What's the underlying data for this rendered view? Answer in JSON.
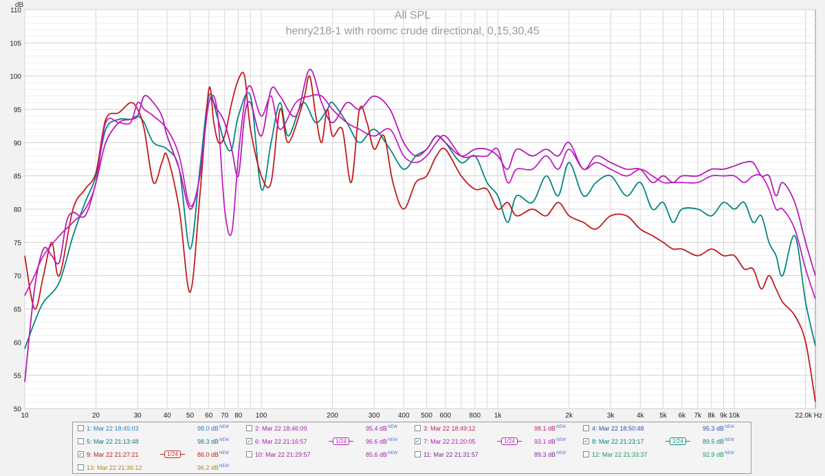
{
  "chart_data": {
    "type": "line",
    "title": "All SPL",
    "subtitle": "henry218-1 with roomc crude directional, 0,15,30,45",
    "y_unit_label": "dB",
    "x_unit_label": "Hz",
    "x_scale": "log",
    "xlim": [
      10,
      22000
    ],
    "ylim": [
      50,
      110
    ],
    "grid": true,
    "y_ticks": [
      50,
      55,
      60,
      65,
      70,
      75,
      80,
      85,
      90,
      95,
      100,
      105,
      110
    ],
    "x_ticks": [
      {
        "v": 10,
        "label": "10"
      },
      {
        "v": 20,
        "label": "20"
      },
      {
        "v": 30,
        "label": "30"
      },
      {
        "v": 40,
        "label": "40"
      },
      {
        "v": 50,
        "label": "50"
      },
      {
        "v": 60,
        "label": "60"
      },
      {
        "v": 70,
        "label": "70"
      },
      {
        "v": 80,
        "label": "80"
      },
      {
        "v": 100,
        "label": "100"
      },
      {
        "v": 200,
        "label": "200"
      },
      {
        "v": 300,
        "label": "300"
      },
      {
        "v": 400,
        "label": "400"
      },
      {
        "v": 500,
        "label": "500"
      },
      {
        "v": 600,
        "label": "600"
      },
      {
        "v": 800,
        "label": "800"
      },
      {
        "v": 1000,
        "label": "1k"
      },
      {
        "v": 2000,
        "label": "2k"
      },
      {
        "v": 3000,
        "label": "3k"
      },
      {
        "v": 4000,
        "label": "4k"
      },
      {
        "v": 5000,
        "label": "5k"
      },
      {
        "v": 6000,
        "label": "6k"
      },
      {
        "v": 7000,
        "label": "7k"
      },
      {
        "v": 8000,
        "label": "8k"
      },
      {
        "v": 9000,
        "label": "9k"
      },
      {
        "v": 10000,
        "label": "10k"
      },
      {
        "v": 22000,
        "label": "22.0k Hz"
      }
    ],
    "series": [
      {
        "color": "#00857f",
        "x": [
          10,
          11,
          12,
          14,
          16,
          18,
          20,
          22,
          25,
          28,
          30,
          32,
          35,
          40,
          45,
          50,
          55,
          60,
          65,
          70,
          75,
          80,
          90,
          100,
          110,
          120,
          130,
          150,
          170,
          190,
          200,
          230,
          260,
          300,
          350,
          400,
          450,
          500,
          550,
          600,
          700,
          800,
          900,
          1000,
          1100,
          1200,
          1400,
          1600,
          1800,
          2000,
          2300,
          2600,
          3000,
          3500,
          4000,
          4500,
          5000,
          5500,
          6000,
          7000,
          8000,
          9000,
          10000,
          11000,
          12000,
          13000,
          14000,
          15000,
          16000,
          18000,
          20000,
          22000
        ],
        "y": [
          59,
          63,
          66,
          69,
          76,
          81,
          85,
          92,
          93.5,
          93.5,
          94,
          93,
          90,
          89,
          86,
          74,
          86,
          97,
          94,
          90,
          89,
          94,
          97,
          83,
          90,
          96,
          91,
          96,
          93,
          95,
          96,
          93,
          90,
          92,
          89,
          86,
          88,
          89,
          91,
          90,
          87,
          88,
          84,
          82,
          78,
          82,
          81,
          85,
          82,
          87,
          82,
          84,
          85,
          82,
          84,
          80,
          81,
          78,
          80,
          80,
          79,
          81,
          80,
          81,
          78,
          79,
          75,
          73,
          70,
          76,
          66,
          59.5
        ]
      },
      {
        "color": "#c11a1a",
        "x": [
          10,
          11,
          12,
          13,
          14,
          16,
          18,
          20,
          22,
          25,
          28,
          30,
          32,
          35,
          38,
          40,
          45,
          50,
          55,
          60,
          63,
          66,
          70,
          75,
          80,
          85,
          90,
          100,
          110,
          120,
          130,
          150,
          160,
          170,
          180,
          190,
          200,
          220,
          240,
          260,
          280,
          300,
          330,
          360,
          400,
          450,
          500,
          550,
          600,
          700,
          800,
          900,
          1000,
          1100,
          1200,
          1400,
          1600,
          1800,
          2000,
          2300,
          2600,
          3000,
          3500,
          4000,
          4500,
          5000,
          5500,
          6000,
          7000,
          8000,
          9000,
          10000,
          11000,
          12000,
          13000,
          14000,
          15000,
          16000,
          18000,
          20000,
          22000
        ],
        "y": [
          73,
          65,
          70,
          75,
          70,
          80,
          83,
          85.5,
          93.5,
          94.5,
          96,
          95,
          92,
          84,
          87,
          88,
          80,
          67.5,
          82,
          98,
          93,
          90,
          91,
          96,
          99.5,
          100,
          92,
          85,
          84,
          95,
          90,
          96,
          100,
          94,
          90,
          95,
          91,
          92,
          84,
          95,
          93,
          89,
          91,
          84,
          80,
          84,
          85,
          88,
          89,
          85,
          83,
          83,
          80,
          81,
          79,
          80,
          79,
          81,
          79,
          78,
          77,
          79,
          79,
          77,
          76,
          75,
          74,
          74,
          73,
          74,
          73,
          73,
          71,
          71,
          68,
          70,
          68,
          66,
          64,
          60,
          51
        ]
      },
      {
        "color": "#b41ab4",
        "x": [
          10,
          11,
          12,
          13,
          14,
          15,
          16,
          18,
          20,
          22,
          25,
          28,
          30,
          32,
          35,
          38,
          40,
          45,
          50,
          55,
          60,
          65,
          70,
          75,
          80,
          85,
          90,
          100,
          110,
          120,
          140,
          160,
          180,
          200,
          230,
          260,
          300,
          350,
          400,
          450,
          500,
          550,
          600,
          700,
          800,
          900,
          1000,
          1100,
          1200,
          1400,
          1600,
          1800,
          2000,
          2300,
          2600,
          3000,
          3500,
          4000,
          4500,
          5000,
          5500,
          6000,
          7000,
          8000,
          9000,
          10000,
          11000,
          12000,
          13000,
          14000,
          15000,
          16000,
          18000,
          20000,
          22000
        ],
        "y": [
          54,
          68,
          74,
          73,
          72,
          78,
          79.5,
          79,
          84,
          90,
          93,
          93.5,
          94,
          97,
          96,
          94,
          91,
          86,
          80,
          85,
          96,
          95,
          93,
          89,
          85,
          94,
          96,
          91,
          98,
          97,
          94,
          101,
          96,
          93,
          96,
          95,
          97,
          95,
          90,
          88,
          89,
          91,
          90,
          88,
          89,
          89,
          88,
          86,
          89,
          88,
          89,
          88,
          90,
          86,
          88,
          87,
          86,
          86,
          84,
          85,
          84,
          85,
          85,
          86,
          86,
          86.5,
          87,
          87,
          85,
          85,
          82,
          84,
          81,
          75,
          70
        ]
      },
      {
        "color": "#c21ec2",
        "x": [
          10,
          11,
          12,
          14,
          16,
          18,
          20,
          22,
          25,
          28,
          30,
          32,
          35,
          40,
          45,
          50,
          55,
          60,
          65,
          70,
          75,
          80,
          85,
          90,
          100,
          110,
          120,
          140,
          160,
          180,
          200,
          230,
          260,
          300,
          350,
          400,
          450,
          500,
          550,
          600,
          700,
          800,
          900,
          1000,
          1100,
          1200,
          1400,
          1600,
          1800,
          2000,
          2300,
          2600,
          3000,
          3500,
          4000,
          4500,
          5000,
          5500,
          6000,
          7000,
          8000,
          9000,
          10000,
          11000,
          12000,
          13000,
          14000,
          15000,
          16000,
          18000,
          20000,
          22000
        ],
        "y": [
          67,
          70,
          73,
          76,
          78,
          80,
          84,
          93,
          93,
          93,
          96,
          95,
          94,
          92,
          88,
          80.5,
          85,
          96,
          95,
          80,
          76.5,
          88,
          96,
          98.5,
          94,
          97,
          92,
          96,
          97,
          97,
          95,
          93,
          92,
          91,
          92,
          88,
          87,
          88,
          90,
          91,
          88,
          88,
          88,
          89,
          84,
          86,
          86,
          88,
          86,
          89,
          86,
          87,
          86,
          85,
          86,
          85,
          84,
          84,
          84,
          84,
          85,
          85,
          85,
          84,
          85,
          85,
          83,
          80,
          80,
          77,
          71,
          66.5
        ]
      }
    ]
  },
  "legend": {
    "items": [
      {
        "label": "1: Mar 22 18:45:03",
        "value": "98.0 dB",
        "badge": "NEW",
        "checked": "",
        "color": "#2a7fc0",
        "smoothing": ""
      },
      {
        "label": "2: Mar 22 18:46:09",
        "value": "95.4 dB",
        "badge": "NEW",
        "checked": "",
        "color": "#a02aa0",
        "smoothing": ""
      },
      {
        "label": "3: Mar 22 18:49:12",
        "value": "98.1 dB",
        "badge": "NEW",
        "checked": "",
        "color": "#b42a6a",
        "smoothing": ""
      },
      {
        "label": "4: Mar 22 18:50:48",
        "value": "95.3 dB",
        "badge": "NEW",
        "checked": "",
        "color": "#2a50b0",
        "smoothing": ""
      },
      {
        "label": "5: Mar 22 21:13:48",
        "value": "98.3 dB",
        "badge": "NEW",
        "checked": "",
        "color": "#0a7a8a",
        "smoothing": ""
      },
      {
        "label": "6: Mar 22 21:16:57",
        "value": "96.6 dB",
        "badge": "NEW",
        "checked": "✓",
        "color": "#b41ab4",
        "smoothing": "1/24"
      },
      {
        "label": "7: Mar 22 21:20:05",
        "value": "93.1 dB",
        "badge": "NEW",
        "checked": "✓",
        "color": "#b41ab4",
        "smoothing": "1/24"
      },
      {
        "label": "8: Mar 22 21:23:17",
        "value": "89.5 dB",
        "badge": "NEW",
        "checked": "✓",
        "color": "#00857f",
        "smoothing": "1/24"
      },
      {
        "label": "9: Mar 22 21:27:21",
        "value": "86.0 dB",
        "badge": "NEW",
        "checked": "✓",
        "color": "#c11a1a",
        "smoothing": "1/24"
      },
      {
        "label": "10: Mar 22 21:29:57",
        "value": "85.6 dB",
        "badge": "NEW",
        "checked": "",
        "color": "#a02aa0",
        "smoothing": ""
      },
      {
        "label": "11: Mar 22 21:31:57",
        "value": "89.3 dB",
        "badge": "NEW",
        "checked": "",
        "color": "#7a2a9a",
        "smoothing": ""
      },
      {
        "label": "12: Mar 22 21:33:37",
        "value": "92.9 dB",
        "badge": "NEW",
        "checked": "",
        "color": "#1a9a5a",
        "smoothing": ""
      },
      {
        "label": "13: Mar 22 21:36:12",
        "value": "96.2 dB",
        "badge": "NEW",
        "checked": "",
        "color": "#b88a10",
        "smoothing": ""
      }
    ]
  }
}
